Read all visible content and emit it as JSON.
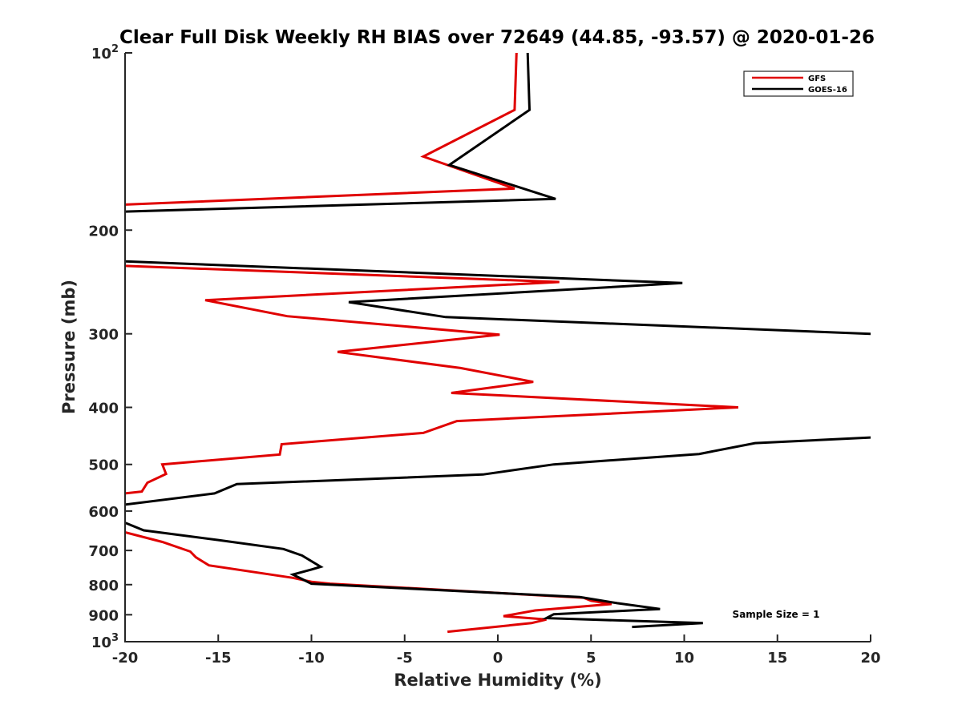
{
  "chart_data": {
    "type": "line",
    "title": "Clear Full Disk Weekly RH BIAS over 72649 (44.85, -93.57) @ 2020-01-26",
    "xlabel": "Relative Humidity (%)",
    "ylabel": "Pressure (mb)",
    "xlim": [
      -20,
      20
    ],
    "ylim": [
      100,
      1000
    ],
    "y_scale": "log",
    "y_reversed": true,
    "grid": false,
    "legend_position": "top-right",
    "x_ticks": [
      -20,
      -15,
      -10,
      -5,
      0,
      5,
      10,
      15,
      20
    ],
    "x_tick_labels": [
      "-20",
      "-15",
      "-10",
      "-5",
      "0",
      "5",
      "10",
      "15",
      "20"
    ],
    "y_ticks": [
      100,
      200,
      300,
      400,
      500,
      600,
      700,
      800,
      900,
      1000
    ],
    "y_tick_labels": [
      {
        "base": "10",
        "exp": "2"
      },
      {
        "base": "200",
        "exp": ""
      },
      {
        "base": "300",
        "exp": ""
      },
      {
        "base": "400",
        "exp": ""
      },
      {
        "base": "500",
        "exp": ""
      },
      {
        "base": "600",
        "exp": ""
      },
      {
        "base": "700",
        "exp": ""
      },
      {
        "base": "800",
        "exp": ""
      },
      {
        "base": "900",
        "exp": ""
      },
      {
        "base": "10",
        "exp": "3"
      }
    ],
    "annotation": "Sample Size = 1",
    "series": [
      {
        "name": "GFS",
        "color": "#e00000",
        "segments": [
          [
            [
              1.0,
              100
            ],
            [
              0.9,
              125
            ],
            [
              -4.0,
              150
            ],
            [
              0.9,
              170
            ],
            [
              -20.0,
              181
            ]
          ],
          [
            [
              -20.0,
              230
            ],
            [
              3.3,
              245
            ],
            [
              -15.7,
              263
            ],
            [
              -11.3,
              280
            ],
            [
              0.1,
              301
            ],
            [
              -8.6,
              322
            ],
            [
              -2.0,
              343
            ],
            [
              1.9,
              362
            ],
            [
              -2.5,
              378
            ],
            [
              12.9,
              400
            ],
            [
              -2.2,
              422
            ],
            [
              -4.0,
              442
            ],
            [
              -11.6,
              462
            ],
            [
              -11.7,
              481
            ],
            [
              -18.0,
              500
            ],
            [
              -17.8,
              519
            ],
            [
              -18.8,
              537
            ],
            [
              -19.1,
              556
            ],
            [
              -20.0,
              560
            ]
          ],
          [
            [
              -20.0,
              652
            ],
            [
              -18.0,
              677
            ],
            [
              -16.5,
              703
            ],
            [
              -16.2,
              719
            ],
            [
              -15.5,
              742
            ],
            [
              -11.0,
              779
            ],
            [
              -10.0,
              791
            ],
            [
              -9.0,
              797
            ],
            [
              4.6,
              842
            ],
            [
              5.0,
              852
            ],
            [
              6.1,
              863
            ],
            [
              2.0,
              885
            ],
            [
              0.3,
              905
            ],
            [
              2.6,
              917
            ],
            [
              1.8,
              930
            ],
            [
              -2.7,
              962
            ]
          ]
        ]
      },
      {
        "name": "GOES-16",
        "color": "#000000",
        "segments": [
          [
            [
              1.6,
              100
            ],
            [
              1.7,
              125
            ],
            [
              -2.6,
              155
            ],
            [
              3.1,
              177
            ],
            [
              -20.0,
              186
            ]
          ],
          [
            [
              -20.0,
              226
            ],
            [
              9.9,
              246
            ],
            [
              -8.0,
              265
            ],
            [
              -2.8,
              281
            ],
            [
              20.0,
              300
            ]
          ],
          [
            [
              20.0,
              450
            ],
            [
              13.8,
              460
            ],
            [
              10.8,
              480
            ],
            [
              3.0,
              500
            ],
            [
              -0.8,
              520
            ],
            [
              -14.0,
              540
            ],
            [
              -15.2,
              560
            ],
            [
              -20.0,
              585
            ]
          ],
          [
            [
              -20.0,
              628
            ],
            [
              -19.0,
              647
            ],
            [
              -15.0,
              672
            ],
            [
              -11.5,
              696
            ],
            [
              -10.5,
              714
            ],
            [
              -9.5,
              746
            ],
            [
              -10.0,
              754
            ],
            [
              -11.0,
              769
            ],
            [
              -10.5,
              783
            ],
            [
              -10.0,
              797
            ],
            [
              4.4,
              840
            ],
            [
              6.4,
              860
            ],
            [
              8.7,
              880
            ],
            [
              3.0,
              898
            ],
            [
              2.6,
              912
            ],
            [
              11.0,
              930
            ],
            [
              7.2,
              944
            ]
          ]
        ]
      }
    ]
  }
}
